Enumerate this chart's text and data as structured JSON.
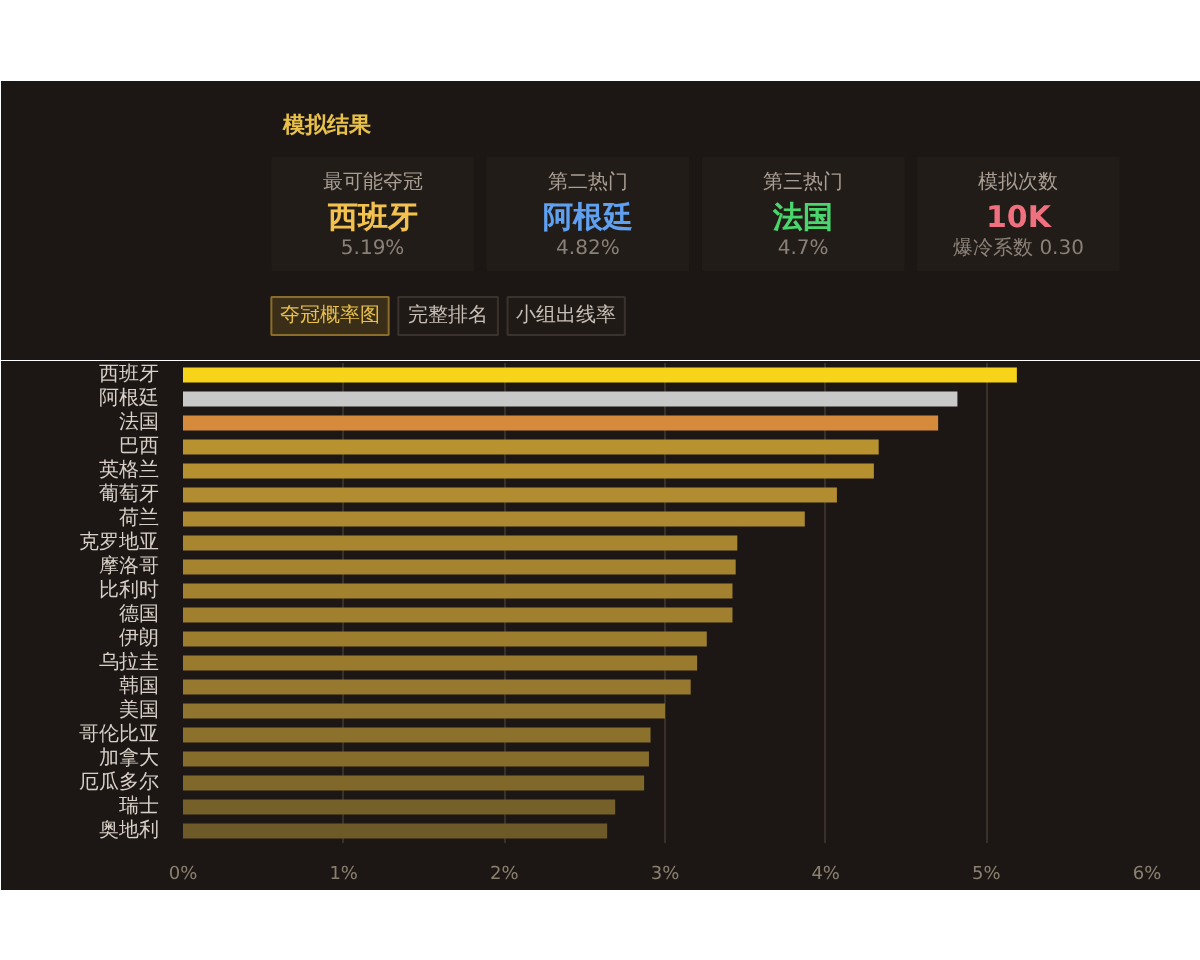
{
  "chart_data": [
    {
      "type": "other",
      "title": "模拟结果",
      "annotations": [
        "最可能夺冠",
        "西班牙",
        "5.19%",
        "第二热门",
        "阿根廷",
        "4.82%",
        "第三热门",
        "法国",
        "4.7%",
        "模拟次数",
        "10K",
        "爆冷系数 0.30",
        "夺冠概率图",
        "完整排名",
        "小组出线率"
      ],
      "colors": [
        "#f2c14e",
        "#5fa0f0",
        "#4ad66d",
        "#f0707f"
      ]
    },
    {
      "type": "bar",
      "orientation": "horizontal",
      "categories": [
        "西班牙",
        "阿根廷",
        "法国",
        "巴西",
        "英格兰",
        "葡萄牙",
        "荷兰",
        "克罗地亚",
        "摩洛哥",
        "比利时",
        "德国",
        "伊朗",
        "乌拉圭",
        "韩国",
        "美国",
        "哥伦比亚",
        "加拿大",
        "厄瓜多尔",
        "瑞士",
        "奥地利"
      ],
      "values": [
        5.19,
        4.82,
        4.7,
        4.33,
        4.3,
        4.07,
        3.87,
        3.45,
        3.44,
        3.42,
        3.42,
        3.26,
        3.2,
        3.16,
        3.0,
        2.91,
        2.9,
        2.87,
        2.69,
        2.64
      ],
      "colors": [
        "#f7d31a",
        "#c9c9c9",
        "#d68a3c",
        "#b8922f",
        "#b6902f",
        "#b18c30",
        "#ad8a31",
        "#a8852f",
        "#a5832f",
        "#a3822f",
        "#a07f2e",
        "#9d7d2e",
        "#9a7b2e",
        "#96782e",
        "#91752e",
        "#8c712d",
        "#876d2c",
        "#80682b",
        "#76602a",
        "#6e5a29"
      ],
      "xlim": [
        0,
        6
      ],
      "xticks": [
        {
          "value": 0,
          "label": "0%"
        },
        {
          "value": 1,
          "label": "1%"
        },
        {
          "value": 2,
          "label": "2%"
        },
        {
          "value": 3,
          "label": "3%"
        },
        {
          "value": 4,
          "label": "4%"
        },
        {
          "value": 5,
          "label": "5%"
        },
        {
          "value": 6,
          "label": "6%"
        }
      ],
      "grid": "x"
    }
  ]
}
